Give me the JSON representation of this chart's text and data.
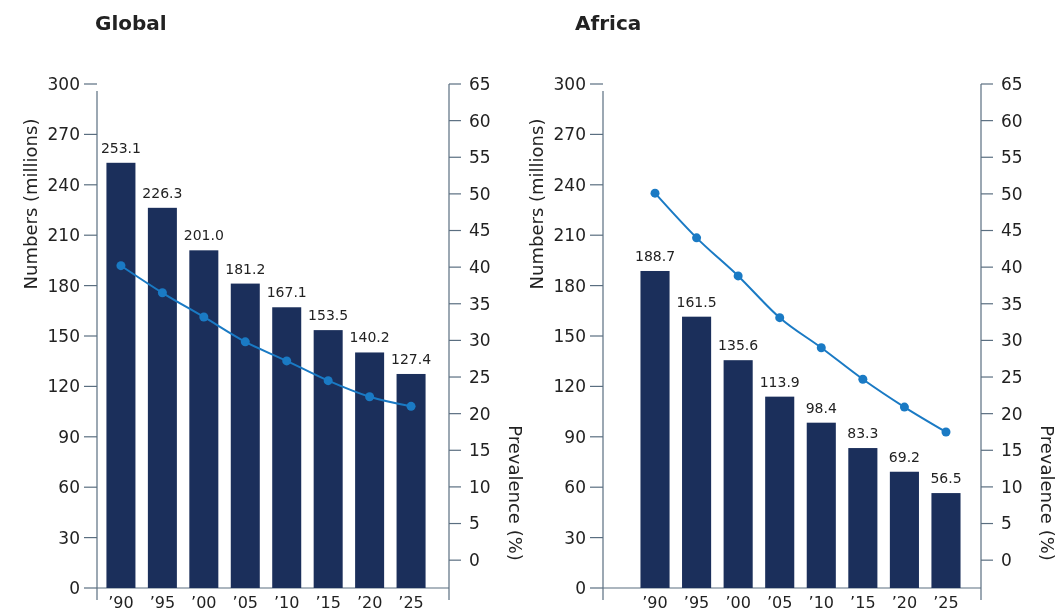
{
  "chart_data": [
    {
      "type": "bar",
      "title": "Global",
      "categories": [
        "’90",
        "’95",
        "’00",
        "’05",
        "’10",
        "’15",
        "’20",
        "’25"
      ],
      "ylabel": "Numbers (millions)",
      "y2label": "Prevalence (%)",
      "ylim": [
        0,
        300
      ],
      "yticks": [
        0,
        30,
        60,
        90,
        120,
        150,
        180,
        210,
        240,
        270,
        300
      ],
      "y2lim": [
        -3.8,
        65
      ],
      "y2ticks": [
        0,
        5,
        10,
        15,
        20,
        25,
        30,
        35,
        40,
        45,
        50,
        55,
        60,
        65
      ],
      "grid": false,
      "series": [
        {
          "color": "#1b2f5b",
          "values": [
            253.1,
            226.3,
            201.0,
            181.2,
            167.1,
            153.5,
            140.2,
            127.4
          ],
          "value_labels": [
            "253.1",
            "226.3",
            "201.0",
            "181.2",
            "167.1",
            "153.5",
            "140.2",
            "127.4"
          ]
        },
        {
          "type": "line",
          "axis": "y2",
          "color": "#1a7ac4",
          "marker": "circle",
          "values": [
            40.2,
            36.5,
            33.2,
            29.8,
            27.2,
            24.5,
            22.3,
            21.0
          ]
        }
      ]
    },
    {
      "type": "bar",
      "title": "Africa",
      "categories": [
        "’90",
        "’95",
        "’00",
        "’05",
        "’10",
        "’15",
        "’20",
        "’25"
      ],
      "ylabel": "Numbers (millions)",
      "y2label": "Prevalence (%)",
      "ylim": [
        0,
        300
      ],
      "yticks": [
        0,
        30,
        60,
        90,
        120,
        150,
        180,
        210,
        240,
        270,
        300
      ],
      "y2lim": [
        -3.8,
        65
      ],
      "y2ticks": [
        0,
        5,
        10,
        15,
        20,
        25,
        30,
        35,
        40,
        45,
        50,
        55,
        60,
        65
      ],
      "grid": false,
      "series": [
        {
          "color": "#1b2f5b",
          "values": [
            188.7,
            161.5,
            135.6,
            113.9,
            98.4,
            83.3,
            69.2,
            56.5
          ],
          "value_labels": [
            "188.7",
            "161.5",
            "135.6",
            "113.9",
            "98.4",
            "83.3",
            "69.2",
            "56.5"
          ]
        },
        {
          "type": "line",
          "axis": "y2",
          "color": "#1a7ac4",
          "marker": "circle",
          "values": [
            50.1,
            44.0,
            38.8,
            33.1,
            29.0,
            24.7,
            20.9,
            17.5
          ]
        }
      ]
    }
  ]
}
